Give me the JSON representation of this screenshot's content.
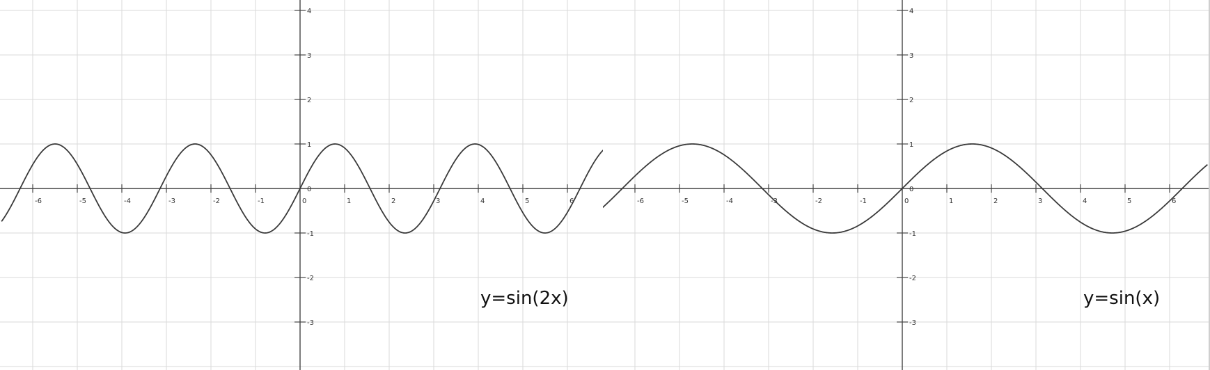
{
  "chart_data": [
    {
      "type": "line",
      "title": "",
      "xlabel": "",
      "ylabel": "",
      "xlim": [
        -6.7,
        6.85
      ],
      "ylim": [
        -4.2,
        4.2
      ],
      "grid": true,
      "x_ticks": [
        -6,
        -5,
        -4,
        -3,
        -2,
        -1,
        0,
        1,
        2,
        3,
        4,
        5,
        6
      ],
      "y_ticks": [
        -3,
        -2,
        -1,
        0,
        1,
        2,
        3,
        4
      ],
      "annotation": "y=sin(2x)",
      "series": [
        {
          "function": "sin(2x)",
          "x_range": [
            -6.7,
            6.85
          ],
          "amplitude": 1,
          "period": 3.1416
        }
      ]
    },
    {
      "type": "line",
      "title": "",
      "xlabel": "",
      "ylabel": "",
      "xlim": [
        -6.85,
        6.85
      ],
      "ylim": [
        -4.2,
        4.2
      ],
      "grid": true,
      "x_ticks": [
        -6,
        -5,
        -4,
        -3,
        -2,
        -1,
        0,
        1,
        2,
        3,
        4,
        5,
        6
      ],
      "y_ticks": [
        -3,
        -2,
        -1,
        0,
        1,
        2,
        3,
        4
      ],
      "annotation": "y=sin(x)",
      "series": [
        {
          "function": "sin(x)",
          "x_range": [
            -6.85,
            6.85
          ],
          "amplitude": 1,
          "period": 6.2832
        }
      ]
    }
  ]
}
